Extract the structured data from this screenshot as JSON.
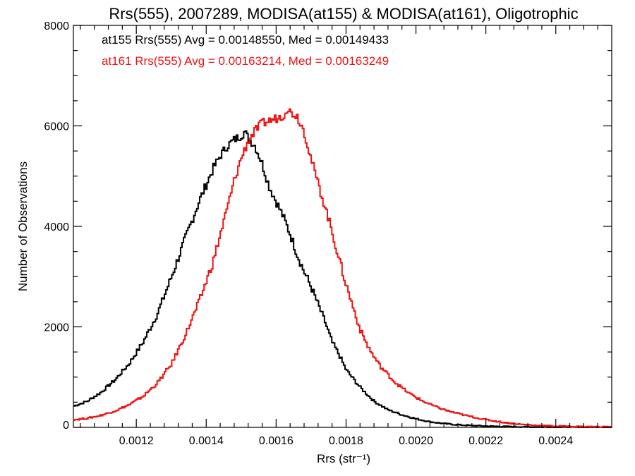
{
  "chart_data": {
    "type": "line",
    "step": true,
    "title": "Rrs(555), 2007289, MODISA(at155) & MODISA(at161), Oligotrophic",
    "xlabel": "Rrs (str⁻¹)",
    "ylabel": "Number of Observations",
    "xlim": [
      0.00102,
      0.00256
    ],
    "ylim": [
      0,
      8000
    ],
    "x_ticks": [
      0.0012,
      0.0014,
      0.0016,
      0.0018,
      0.002,
      0.0022,
      0.0024
    ],
    "x_tick_labels": [
      "0.0012",
      "0.0014",
      "0.0016",
      "0.0018",
      "0.0020",
      "0.0022",
      "0.0024"
    ],
    "y_ticks": [
      0,
      2000,
      4000,
      6000,
      8000
    ],
    "y_tick_labels": [
      "0",
      "2000",
      "4000",
      "6000",
      "8000"
    ],
    "grid": false,
    "annotations": [
      {
        "text": "at155 Rrs(555) Avg = 0.00148550, Med = 0.00149433",
        "color": "#000000"
      },
      {
        "text": "at161 Rrs(555) Avg = 0.00163214, Med = 0.00163249",
        "color": "#ee1111"
      }
    ],
    "series": [
      {
        "color": "#000000",
        "x": [
          0.00102,
          0.00106,
          0.0011,
          0.00114,
          0.00118,
          0.00122,
          0.00126,
          0.0013,
          0.00134,
          0.00138,
          0.00142,
          0.00144,
          0.00146,
          0.00148,
          0.0015,
          0.00151,
          0.00152,
          0.00154,
          0.00156,
          0.00158,
          0.0016,
          0.00162,
          0.00164,
          0.00166,
          0.00168,
          0.0017,
          0.00172,
          0.00174,
          0.00176,
          0.00178,
          0.0018,
          0.00184,
          0.00188,
          0.00192,
          0.00196,
          0.002,
          0.00204,
          0.00208,
          0.00212,
          0.00216,
          0.0022,
          0.00226,
          0.00232,
          0.0024,
          0.00248,
          0.00256
        ],
        "y": [
          420,
          520,
          700,
          950,
          1270,
          1700,
          2250,
          2980,
          3750,
          4500,
          5150,
          5400,
          5600,
          5720,
          5810,
          5880,
          5760,
          5600,
          5250,
          4800,
          4500,
          4200,
          3850,
          3450,
          3100,
          2800,
          2450,
          2100,
          1700,
          1450,
          1150,
          800,
          520,
          350,
          250,
          170,
          110,
          75,
          50,
          35,
          25,
          15,
          8,
          5,
          3,
          2
        ]
      },
      {
        "color": "#ee1111",
        "x": [
          0.00102,
          0.00106,
          0.0011,
          0.00114,
          0.00118,
          0.00122,
          0.00126,
          0.0013,
          0.00134,
          0.00138,
          0.00142,
          0.00146,
          0.00148,
          0.0015,
          0.00152,
          0.00154,
          0.00156,
          0.00158,
          0.0016,
          0.00162,
          0.00163,
          0.00164,
          0.00166,
          0.00168,
          0.0017,
          0.00172,
          0.00174,
          0.00176,
          0.00178,
          0.0018,
          0.00182,
          0.00184,
          0.00186,
          0.00188,
          0.0019,
          0.00194,
          0.00198,
          0.00202,
          0.00206,
          0.0021,
          0.00214,
          0.00218,
          0.00222,
          0.00226,
          0.0023,
          0.00234,
          0.0024,
          0.00248,
          0.00256
        ],
        "y": [
          150,
          180,
          240,
          330,
          450,
          620,
          880,
          1250,
          1830,
          2500,
          3300,
          4350,
          4900,
          5350,
          5700,
          5900,
          6050,
          6100,
          6150,
          6200,
          6350,
          6280,
          6200,
          5900,
          5350,
          4850,
          4400,
          3900,
          3350,
          2850,
          2400,
          1950,
          1650,
          1400,
          1200,
          900,
          680,
          520,
          400,
          310,
          240,
          180,
          130,
          90,
          60,
          40,
          25,
          15,
          8
        ]
      }
    ]
  }
}
